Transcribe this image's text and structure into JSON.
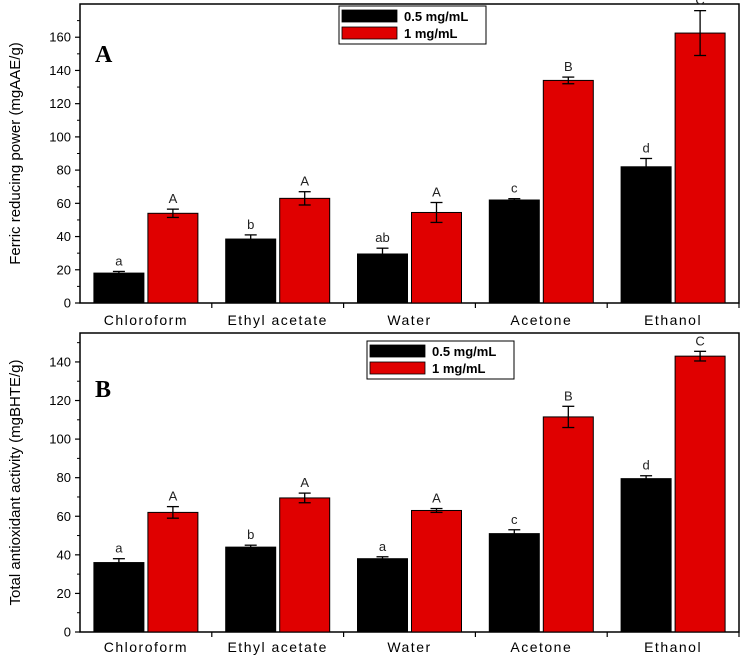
{
  "chart_data": [
    {
      "type": "bar",
      "panel_label": "A",
      "ylabel": "Ferric reducing power (mgAAE/g)",
      "ylim": [
        0,
        180
      ],
      "yticks": [
        0,
        20,
        40,
        60,
        80,
        100,
        120,
        140,
        160
      ],
      "categories": [
        "Chloroform",
        "Ethyl acetate",
        "Water",
        "Acetone",
        "Ethanol"
      ],
      "legend_position": "top-center",
      "series": [
        {
          "name": "0.5 mg/mL",
          "color": "#000000",
          "values": [
            18,
            38.5,
            29.5,
            62,
            82
          ],
          "errors": [
            1,
            2.5,
            3.5,
            0.8,
            5
          ],
          "labels": [
            "a",
            "b",
            "ab",
            "c",
            "d"
          ]
        },
        {
          "name": "1 mg/mL",
          "color": "#e00000",
          "values": [
            54,
            63,
            54.5,
            134,
            162.5
          ],
          "errors": [
            2.5,
            4,
            6,
            2,
            13.5
          ],
          "labels": [
            "A",
            "A",
            "A",
            "B",
            "C"
          ]
        }
      ]
    },
    {
      "type": "bar",
      "panel_label": "B",
      "ylabel": "Total antioxidant activity (mgBHTE/g)",
      "ylim": [
        0,
        155
      ],
      "yticks": [
        0,
        20,
        40,
        60,
        80,
        100,
        120,
        140
      ],
      "categories": [
        "Chloroform",
        "Ethyl acetate",
        "Water",
        "Acetone",
        "Ethanol"
      ],
      "legend_position": "top-center",
      "series": [
        {
          "name": "0.5 mg/mL",
          "color": "#000000",
          "values": [
            36,
            44,
            38,
            51,
            79.5
          ],
          "errors": [
            2,
            1,
            1,
            2,
            1.5
          ],
          "labels": [
            "a",
            "b",
            "a",
            "c",
            "d"
          ]
        },
        {
          "name": "1 mg/mL",
          "color": "#e00000",
          "values": [
            62,
            69.5,
            63,
            111.5,
            143
          ],
          "errors": [
            3,
            2.5,
            1,
            5.5,
            2.5
          ],
          "labels": [
            "A",
            "A",
            "A",
            "B",
            "C"
          ]
        }
      ]
    }
  ]
}
